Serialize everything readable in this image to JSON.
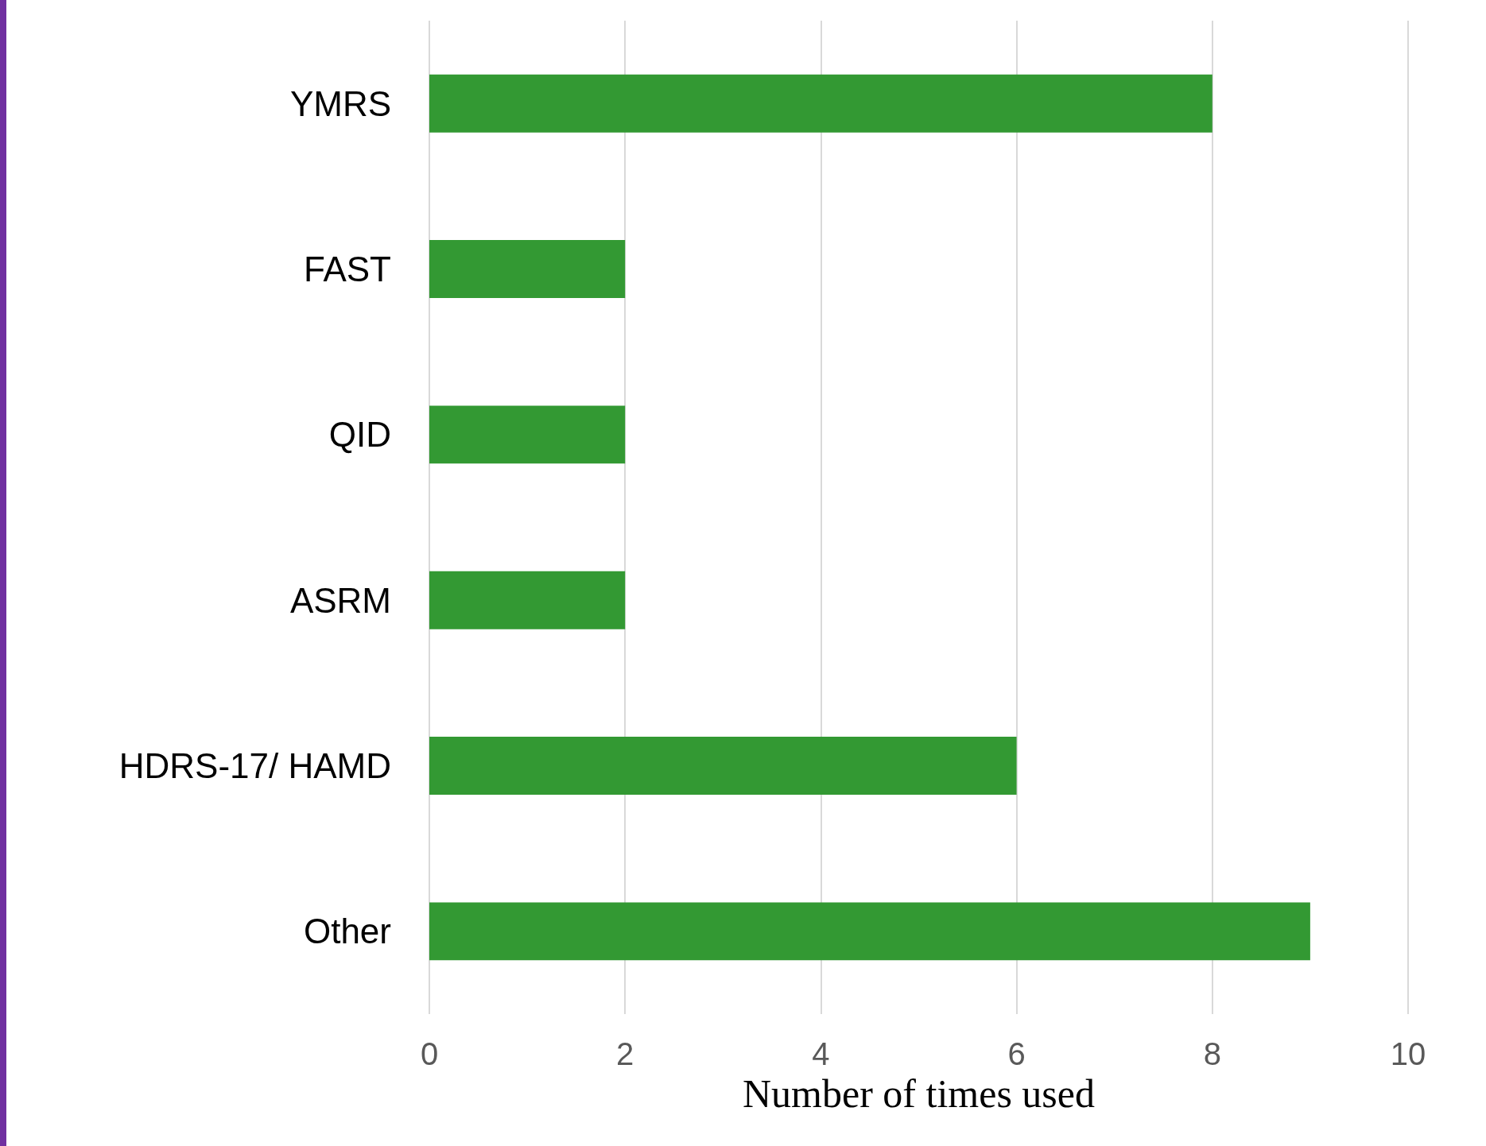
{
  "chart_data": {
    "type": "bar",
    "orientation": "horizontal",
    "categories": [
      "YMRS",
      "FAST",
      "QID",
      "ASRM",
      "HDRS-17/ HAMD",
      "Other"
    ],
    "values": [
      8,
      2,
      2,
      2,
      6,
      9
    ],
    "color": "#339933",
    "xlabel": "Number of times used",
    "xlim": [
      0,
      10
    ],
    "xticks": [
      0,
      2,
      4,
      6,
      8,
      10
    ],
    "grid": "x"
  }
}
